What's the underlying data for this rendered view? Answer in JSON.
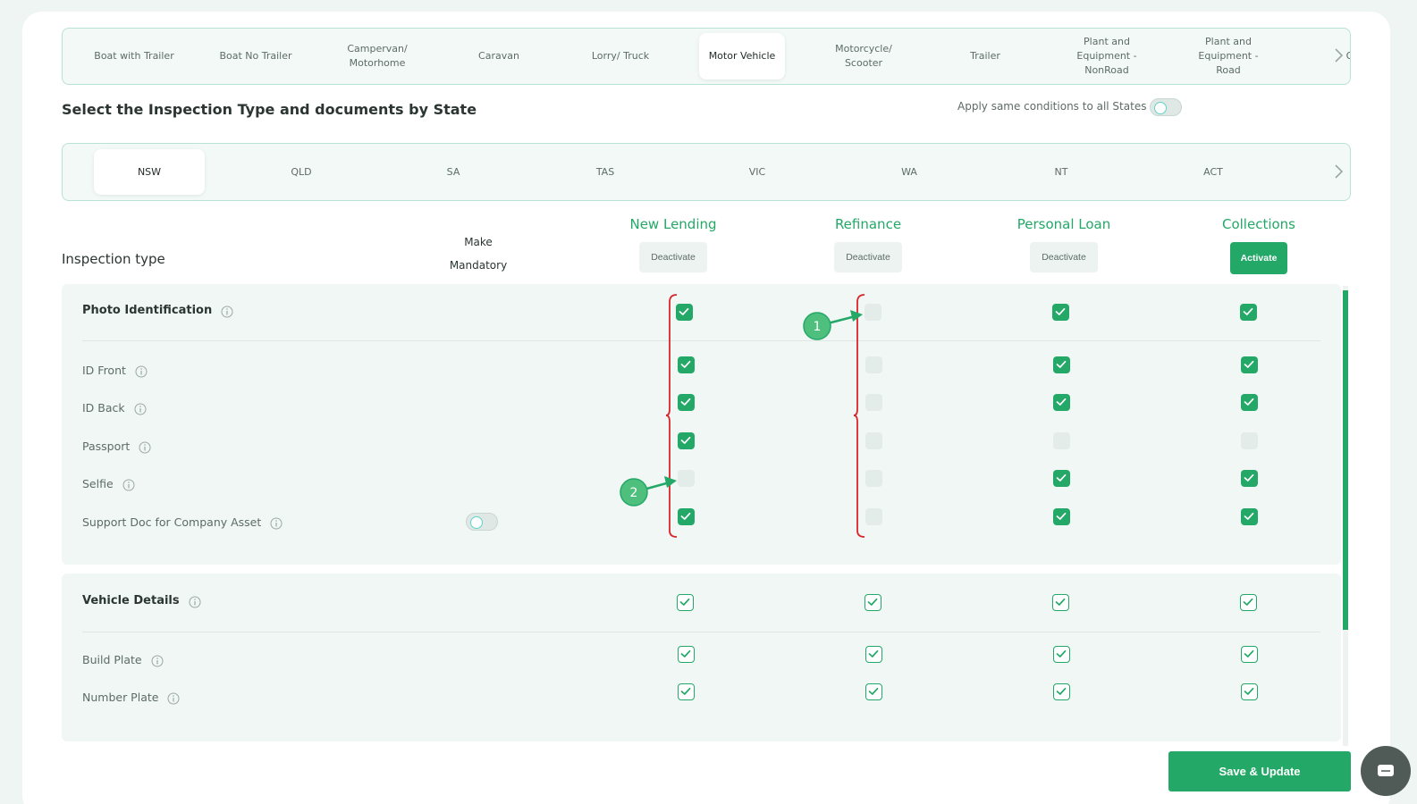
{
  "vehicle_tabs": [
    {
      "label": "Boat with Trailer",
      "selected": false
    },
    {
      "label": "Boat No Trailer",
      "selected": false
    },
    {
      "label": "Campervan/ Motorhome",
      "selected": false
    },
    {
      "label": "Caravan",
      "selected": false
    },
    {
      "label": "Lorry/ Truck",
      "selected": false
    },
    {
      "label": "Motor Vehicle",
      "selected": true
    },
    {
      "label": "Motorcycle/ Scooter",
      "selected": false
    },
    {
      "label": "Trailer",
      "selected": false
    },
    {
      "label": "Plant and Equipment - NonRoad",
      "selected": false
    },
    {
      "label": "Plant and Equipment - Road",
      "selected": false
    },
    {
      "label": "O",
      "selected": false
    }
  ],
  "section_title": "Select the Inspection Type and documents by State",
  "apply_same": {
    "label": "Apply same conditions to all States",
    "on": false
  },
  "states": [
    {
      "label": "NSW",
      "selected": true
    },
    {
      "label": "QLD",
      "selected": false
    },
    {
      "label": "SA",
      "selected": false
    },
    {
      "label": "TAS",
      "selected": false
    },
    {
      "label": "VIC",
      "selected": false
    },
    {
      "label": "WA",
      "selected": false
    },
    {
      "label": "NT",
      "selected": false
    },
    {
      "label": "ACT",
      "selected": false
    }
  ],
  "columns": {
    "inspection_type": "Inspection type",
    "make_mandatory": "Make Mandatory",
    "loan_types": [
      {
        "name": "New Lending",
        "button": "Deactivate",
        "button_style": "light"
      },
      {
        "name": "Refinance",
        "button": "Deactivate",
        "button_style": "light"
      },
      {
        "name": "Personal Loan",
        "button": "Deactivate",
        "button_style": "light"
      },
      {
        "name": "Collections",
        "button": "Activate",
        "button_style": "filled"
      }
    ]
  },
  "groups": [
    {
      "name": "Photo Identification",
      "check_style": "filled",
      "checks": [
        true,
        false,
        true,
        true
      ],
      "items": [
        {
          "name": "ID Front",
          "checks": [
            true,
            false,
            true,
            true
          ]
        },
        {
          "name": "ID Back",
          "checks": [
            true,
            false,
            true,
            true
          ]
        },
        {
          "name": "Passport",
          "checks": [
            true,
            false,
            false,
            false
          ]
        },
        {
          "name": "Selfie",
          "checks": [
            false,
            false,
            true,
            true
          ]
        },
        {
          "name": "Support Doc for Company Asset",
          "checks": [
            true,
            false,
            true,
            true
          ],
          "mandatory_toggle": false
        }
      ]
    },
    {
      "name": "Vehicle Details",
      "check_style": "outline",
      "checks": [
        true,
        true,
        true,
        true
      ],
      "items": [
        {
          "name": "Build Plate",
          "checks": [
            true,
            true,
            true,
            true
          ]
        },
        {
          "name": "Number Plate",
          "checks": [
            true,
            true,
            true,
            true
          ]
        }
      ]
    }
  ],
  "annotations": [
    "1",
    "2"
  ],
  "save_button": "Save & Update"
}
